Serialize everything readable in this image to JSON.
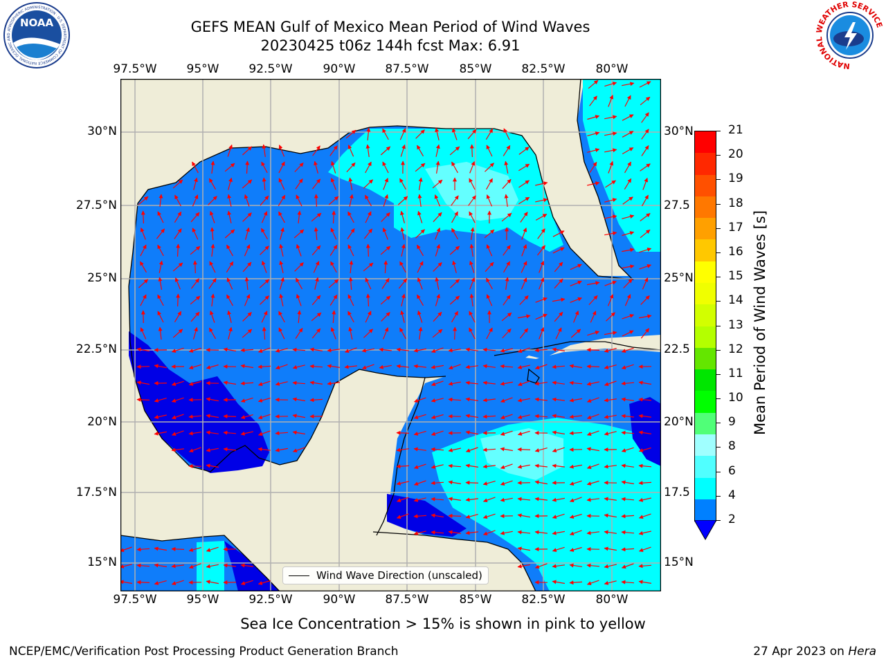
{
  "header": {
    "title_line1": "GEFS MEAN Gulf of Mexico Mean Period of Wind Waves",
    "title_line2": "20230425 t06z 144h fcst   Max: 6.91"
  },
  "logos": {
    "left_name": "NOAA",
    "left_ring_text": "NATIONAL OCEANIC AND ATMOSPHERIC ADMINISTRATION · U.S. DEPARTMENT OF COMMERCE",
    "right_ring_text": "NATIONAL WEATHER SERVICE"
  },
  "map": {
    "lon_labels": [
      "97.5°W",
      "95°W",
      "92.5°W",
      "90°W",
      "87.5°W",
      "85°W",
      "82.5°W",
      "80°W"
    ],
    "lat_labels_left": [
      "30°N",
      "27.5°N",
      "25°N",
      "22.5°N",
      "20°N",
      "17.5°N",
      "15°N"
    ],
    "lat_labels_right": [
      "30°N",
      "27.5",
      "25°N",
      "22.5",
      "20°N",
      "17.5",
      "15°N"
    ],
    "legend_label": "Wind Wave Direction (unscaled)",
    "colors": {
      "land": "#efedd8",
      "ocean_low": "#0000e6",
      "ocean_2_4": "#0f7dfa",
      "ocean_4_6": "#00ffff",
      "ocean_6_8": "#64ffff",
      "arrow": "#ff0000"
    }
  },
  "colorbar": {
    "title": "Mean Period of Wind Waves [s]",
    "labels": [
      "21",
      "20",
      "19",
      "18",
      "17",
      "16",
      "15",
      "14",
      "13",
      "12",
      "11",
      "10",
      "9",
      "8",
      "6",
      "4",
      "2"
    ],
    "colors": [
      "#ff0000",
      "#ff2800",
      "#ff5000",
      "#ff7800",
      "#ffa000",
      "#ffc800",
      "#ffff00",
      "#f0ff00",
      "#d2ff00",
      "#b4ff00",
      "#64e600",
      "#00e600",
      "#00ff00",
      "#50ff78",
      "#a0ffff",
      "#50ffff",
      "#00ffff",
      "#0080ff"
    ],
    "extend_color": "#0000ff"
  },
  "note": "Sea Ice Concentration > 15% is shown in pink to yellow",
  "footer": {
    "left": "NCEP/EMC/Verification Post Processing Product Generation Branch",
    "right_date": "27 Apr 2023 on ",
    "right_machine": "Hera"
  }
}
